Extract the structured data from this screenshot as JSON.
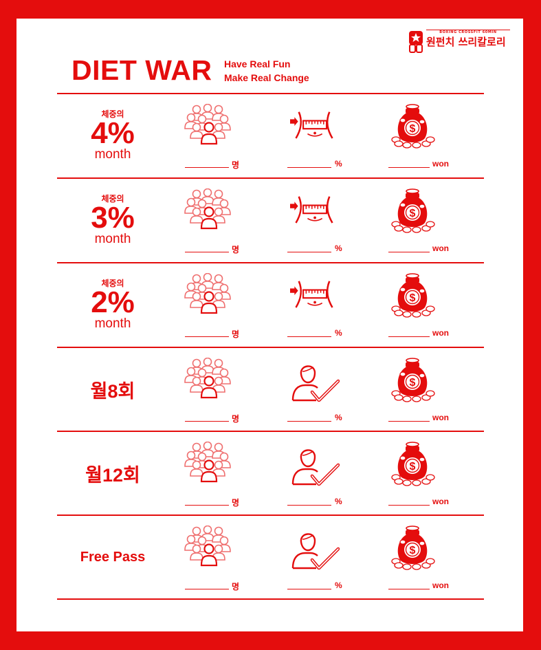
{
  "brand": {
    "subtitle": "BOXING CROSSFIT 60MIN",
    "name": "원펀치 쓰리칼로리"
  },
  "header": {
    "title": "DIET WAR",
    "tagline_line1": "Have Real Fun",
    "tagline_line2": "Make Real Change"
  },
  "units": {
    "people": "명",
    "percent": "%",
    "money": "won"
  },
  "rows": [
    {
      "small": "체중의",
      "big": "4%",
      "sub": "month",
      "goal_icon": "waist-measure-icon"
    },
    {
      "small": "체중의",
      "big": "3%",
      "sub": "month",
      "goal_icon": "waist-measure-icon"
    },
    {
      "small": "체중의",
      "big": "2%",
      "sub": "month",
      "goal_icon": "waist-measure-icon"
    },
    {
      "label": "월8회",
      "goal_icon": "person-check-icon"
    },
    {
      "label": "월12회",
      "goal_icon": "person-check-icon"
    },
    {
      "label": "Free Pass",
      "goal_icon": "person-check-icon"
    }
  ],
  "colors": {
    "accent": "#e40d0d",
    "icon_light": "#ef6f6f"
  }
}
